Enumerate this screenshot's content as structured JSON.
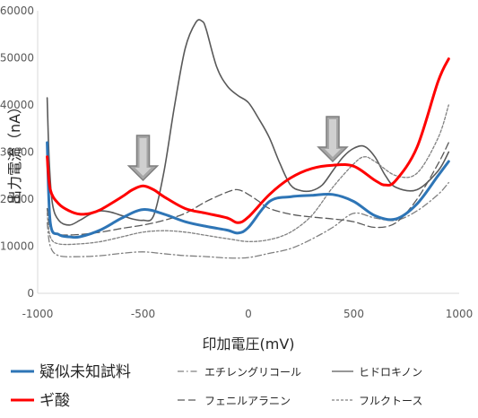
{
  "chart_data": {
    "type": "line",
    "title": "",
    "xlabel": "印加電圧(mV)",
    "ylabel": "出力電流（nA）",
    "xlim": [
      -1000,
      1000
    ],
    "ylim": [
      0,
      60000
    ],
    "xticks": [
      -1000,
      -500,
      0,
      500,
      1000
    ],
    "yticks": [
      0,
      10000,
      20000,
      30000,
      40000,
      50000,
      60000
    ],
    "grid": false,
    "legend_position": "bottom",
    "annotations": [
      {
        "type": "down-arrow",
        "x": -500,
        "y": 24000
      },
      {
        "type": "down-arrow",
        "x": 400,
        "y": 28000
      }
    ],
    "series": [
      {
        "name": "疑似未知試料",
        "color": "#2e75b6",
        "style": "solid",
        "width": 3,
        "x": [
          -955,
          -940,
          -900,
          -850,
          -800,
          -700,
          -600,
          -500,
          -400,
          -300,
          -200,
          -100,
          -50,
          0,
          100,
          200,
          300,
          400,
          500,
          600,
          700,
          800,
          900,
          950
        ],
        "y": [
          32000,
          15000,
          12500,
          12000,
          12000,
          13500,
          16000,
          17800,
          16800,
          15200,
          14200,
          13400,
          12800,
          14000,
          19500,
          20500,
          20800,
          21000,
          19500,
          16500,
          15800,
          19000,
          25000,
          28000
        ]
      },
      {
        "name": "ギ酸",
        "color": "#ff0000",
        "style": "solid",
        "width": 3,
        "x": [
          -955,
          -940,
          -900,
          -850,
          -800,
          -750,
          -700,
          -600,
          -550,
          -500,
          -450,
          -400,
          -300,
          -200,
          -100,
          -50,
          0,
          100,
          200,
          300,
          400,
          500,
          600,
          650,
          700,
          800,
          900,
          950
        ],
        "y": [
          29000,
          22000,
          19000,
          17500,
          16800,
          17000,
          17800,
          20500,
          22000,
          22800,
          22000,
          20500,
          18000,
          17000,
          16000,
          15000,
          16200,
          21000,
          24500,
          26500,
          27200,
          27000,
          24000,
          23000,
          24000,
          31000,
          45000,
          49800
        ]
      },
      {
        "name": "エチレングリコール",
        "color": "#808080",
        "style": "dashdot",
        "width": 1.3,
        "x": [
          -955,
          -940,
          -900,
          -800,
          -700,
          -600,
          -500,
          -400,
          -300,
          -200,
          -100,
          0,
          100,
          200,
          300,
          400,
          500,
          600,
          700,
          800,
          900,
          950
        ],
        "y": [
          15000,
          10000,
          8000,
          7800,
          8000,
          8500,
          8800,
          8400,
          8000,
          7800,
          7500,
          7600,
          8500,
          9500,
          11500,
          14000,
          17000,
          16000,
          15500,
          17500,
          21000,
          23500
        ]
      },
      {
        "name": "フェニルアラニン",
        "color": "#595959",
        "style": "longdash",
        "width": 1.3,
        "x": [
          -955,
          -940,
          -900,
          -800,
          -700,
          -600,
          -500,
          -400,
          -300,
          -200,
          -100,
          -50,
          0,
          50,
          100,
          200,
          300,
          400,
          500,
          600,
          700,
          800,
          900,
          950
        ],
        "y": [
          18000,
          14000,
          12500,
          12500,
          13000,
          13800,
          14500,
          15500,
          17000,
          19500,
          21500,
          22000,
          21000,
          19500,
          18000,
          16800,
          16200,
          15800,
          15200,
          14000,
          15000,
          20000,
          27500,
          32000
        ]
      },
      {
        "name": "ヒドロキノン",
        "color": "#595959",
        "style": "solid",
        "width": 1.6,
        "x": [
          -955,
          -945,
          -930,
          -900,
          -850,
          -800,
          -750,
          -700,
          -650,
          -600,
          -550,
          -500,
          -450,
          -400,
          -350,
          -300,
          -250,
          -220,
          -200,
          -150,
          -100,
          -50,
          0,
          50,
          100,
          150,
          200,
          250,
          300,
          350,
          400,
          450,
          500,
          550,
          600,
          650,
          700,
          800,
          900,
          950
        ],
        "y": [
          41500,
          28000,
          19000,
          15500,
          14500,
          15500,
          16800,
          17500,
          17200,
          16500,
          15800,
          15500,
          16500,
          26000,
          40000,
          52000,
          57500,
          57800,
          56000,
          48000,
          44000,
          42000,
          40500,
          37000,
          33000,
          27500,
          23000,
          21800,
          21800,
          23000,
          26000,
          29000,
          30800,
          31200,
          29000,
          25000,
          22500,
          22000,
          26000,
          30000
        ]
      },
      {
        "name": "フルクトース",
        "color": "#808080",
        "style": "shortdash",
        "width": 1.3,
        "x": [
          -955,
          -940,
          -900,
          -800,
          -700,
          -600,
          -500,
          -400,
          -300,
          -200,
          -100,
          0,
          100,
          200,
          300,
          400,
          500,
          550,
          600,
          700,
          800,
          900,
          950
        ],
        "y": [
          17000,
          12000,
          10500,
          10500,
          11000,
          12000,
          13000,
          13300,
          13000,
          12300,
          11600,
          11000,
          11400,
          13000,
          16500,
          22500,
          27500,
          29000,
          28000,
          25000,
          25500,
          33000,
          40000
        ]
      }
    ]
  }
}
